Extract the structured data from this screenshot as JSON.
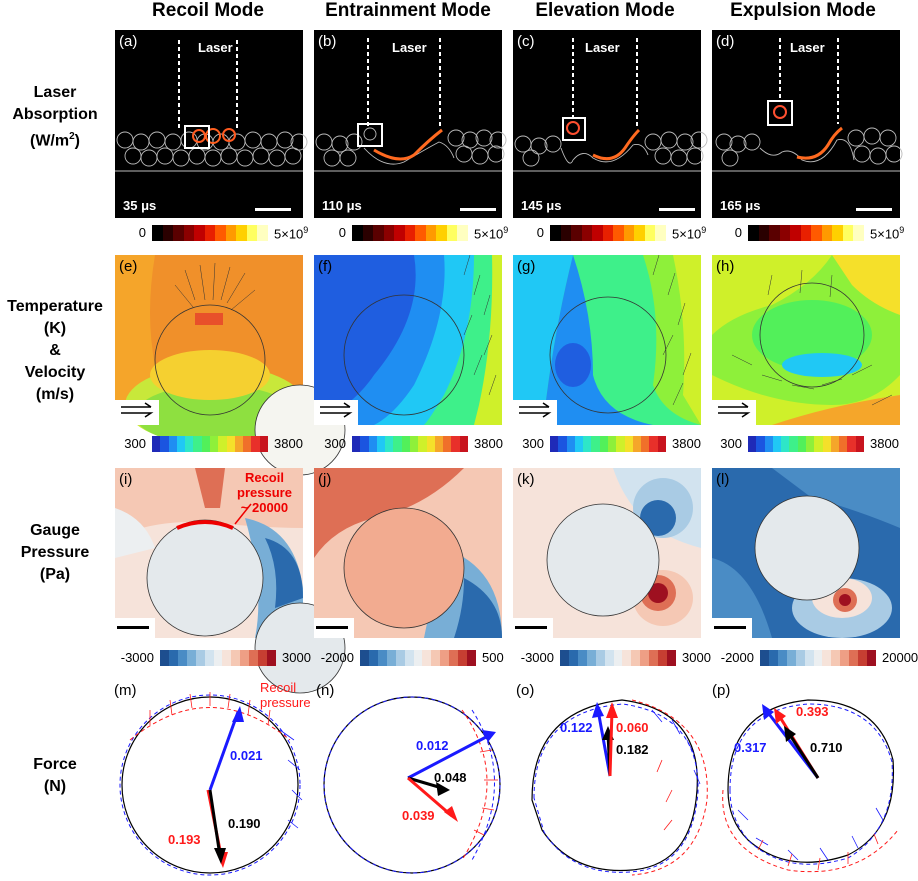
{
  "columns": [
    "Recoil Mode",
    "Entrainment Mode",
    "Elevation Mode",
    "Expulsion Mode"
  ],
  "rows": {
    "laser": {
      "line1": "Laser",
      "line2": "Absorption",
      "line3_base": "(W/m",
      "line3_sup": "2",
      "line3_end": ")"
    },
    "temperature": {
      "line1": "Temperature",
      "line2": "(K)",
      "line3": "&",
      "line4": "Velocity",
      "line5": "(m/s)"
    },
    "pressure": {
      "line1": "Gauge",
      "line2": "Pressure",
      "line3": "(Pa)"
    },
    "force": {
      "line1": "Force",
      "line2": "(N)"
    }
  },
  "laser_label": "Laser",
  "panels_laser": [
    {
      "label": "(a)",
      "time": "35 μs"
    },
    {
      "label": "(b)",
      "time": "110 μs"
    },
    {
      "label": "(c)",
      "time": "145 μs"
    },
    {
      "label": "(d)",
      "time": "165 μs"
    }
  ],
  "laser_cbar": {
    "min": "0",
    "max_base": "5×10",
    "max_sup": "9",
    "colors": [
      "#000000",
      "#2a0000",
      "#5a0000",
      "#8b0000",
      "#c00000",
      "#e82000",
      "#ff5a00",
      "#ff9a00",
      "#ffd000",
      "#ffff60",
      "#ffffc0"
    ]
  },
  "panels_temp": [
    {
      "label": "(e)"
    },
    {
      "label": "(f)"
    },
    {
      "label": "(g)"
    },
    {
      "label": "(h)"
    }
  ],
  "temp_cbar": {
    "min": "300",
    "max": "3800",
    "colors": [
      "#1f2ab8",
      "#1b55e0",
      "#1f8ef2",
      "#20c8f5",
      "#2ee6c8",
      "#3ef08a",
      "#52f05a",
      "#8ef03a",
      "#cff02a",
      "#f5e02a",
      "#f5a62a",
      "#f0702a",
      "#e8302a",
      "#c8141e"
    ]
  },
  "panels_pressure": [
    {
      "label": "(i)",
      "min": "-3000",
      "max": "3000"
    },
    {
      "label": "(j)",
      "min": "-2000",
      "max": "500"
    },
    {
      "label": "(k)",
      "min": "-3000",
      "max": "3000"
    },
    {
      "label": "(l)",
      "min": "-2000",
      "max": "20000"
    }
  ],
  "pressure_cbar_colors": [
    "#1d4e8f",
    "#2a6aad",
    "#4a8cc5",
    "#78aed6",
    "#a9cbe4",
    "#d2e3ef",
    "#eceff1",
    "#f6e3da",
    "#f5c8b4",
    "#ee9f85",
    "#de6f55",
    "#c63e32",
    "#9e1020"
  ],
  "recoil_annotation": {
    "line1": "Recoil",
    "line2": "pressure",
    "line3": "~ 20000"
  },
  "panels_force": [
    {
      "label": "(m)",
      "blue": "0.021",
      "black": "0.190",
      "red": "0.193",
      "annotation1": "Recoil",
      "annotation2": "pressure"
    },
    {
      "label": "(n)",
      "blue": "0.012",
      "black": "0.048",
      "red": "0.039"
    },
    {
      "label": "(o)",
      "blue": "0.122",
      "black": "0.182",
      "red": "0.060"
    },
    {
      "label": "(p)",
      "blue": "0.317",
      "black": "0.710",
      "red": "0.393"
    }
  ],
  "colors": {
    "blue_force": "#1a1aff",
    "red_force": "#ff1a1a",
    "black_force": "#000000"
  }
}
